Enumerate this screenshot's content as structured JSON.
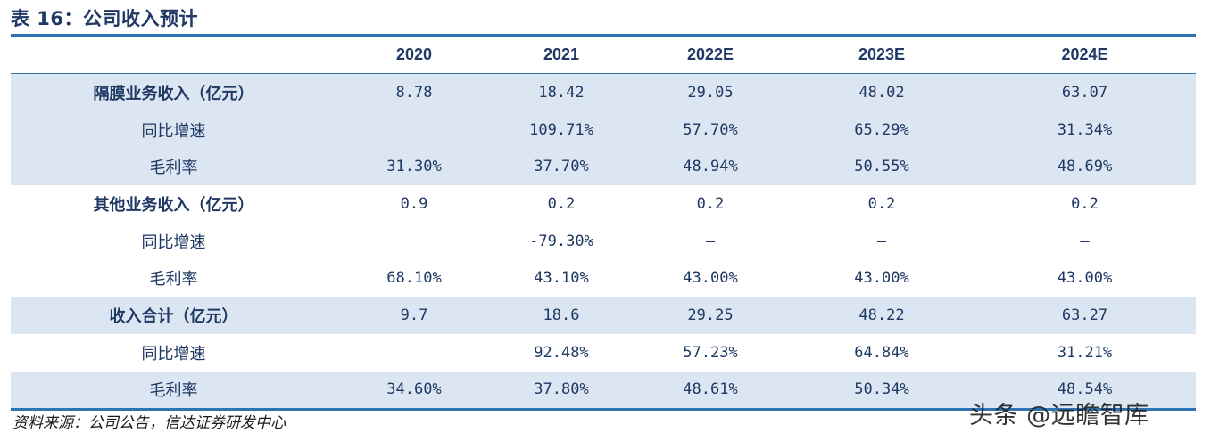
{
  "title": "表 16：公司收入预计",
  "table": {
    "headers": [
      "",
      "2020",
      "2021",
      "2022E",
      "2023E",
      "2024E"
    ],
    "rows": [
      {
        "label": "隔膜业务收入（亿元）",
        "bold": true,
        "shade": true,
        "values": [
          "8.78",
          "18.42",
          "29.05",
          "48.02",
          "63.07"
        ]
      },
      {
        "label": "同比增速",
        "bold": false,
        "shade": true,
        "values": [
          "",
          "109.71%",
          "57.70%",
          "65.29%",
          "31.34%"
        ]
      },
      {
        "label": "毛利率",
        "bold": false,
        "shade": true,
        "values": [
          "31.30%",
          "37.70%",
          "48.94%",
          "50.55%",
          "48.69%"
        ]
      },
      {
        "label": "其他业务收入（亿元）",
        "bold": true,
        "shade": false,
        "values": [
          "0.9",
          "0.2",
          "0.2",
          "0.2",
          "0.2"
        ]
      },
      {
        "label": "同比增速",
        "bold": false,
        "shade": false,
        "values": [
          "",
          "-79.30%",
          "—",
          "—",
          "—"
        ]
      },
      {
        "label": "毛利率",
        "bold": false,
        "shade": false,
        "values": [
          "68.10%",
          "43.10%",
          "43.00%",
          "43.00%",
          "43.00%"
        ]
      },
      {
        "label": "收入合计（亿元）",
        "bold": true,
        "shade": true,
        "values": [
          "9.7",
          "18.6",
          "29.25",
          "48.22",
          "63.27"
        ]
      },
      {
        "label": "同比增速",
        "bold": false,
        "shade": false,
        "values": [
          "",
          "92.48%",
          "57.23%",
          "64.84%",
          "31.21%"
        ]
      },
      {
        "label": "毛利率",
        "bold": false,
        "shade": true,
        "values": [
          "34.60%",
          "37.80%",
          "48.61%",
          "50.34%",
          "48.54%"
        ]
      }
    ]
  },
  "source": "资料来源：公司公告，信达证券研发中心",
  "watermark": "头条 @远瞻智库",
  "colors": {
    "title": "#1f3864",
    "rule": "#2e74b5",
    "shade": "#dbe6f2",
    "text": "#1f3864"
  }
}
